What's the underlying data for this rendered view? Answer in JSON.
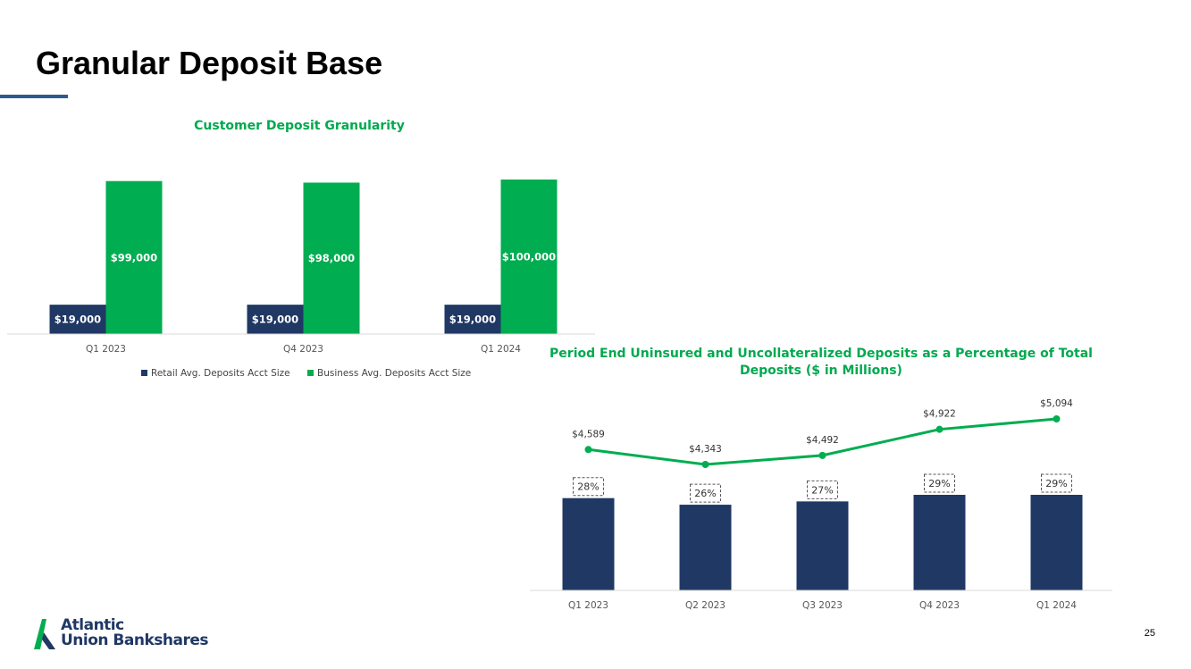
{
  "page": {
    "title": "Granular Deposit Base",
    "page_number": "25",
    "logo_line1": "Atlantic",
    "logo_line2": "Union Bankshares"
  },
  "colors": {
    "navy": "#203864",
    "green": "#00ad50",
    "title_green": "#00a94f",
    "accent_rule": "#2f5a8f"
  },
  "chart_data": [
    {
      "type": "bar",
      "title": "Customer Deposit Granularity",
      "categories": [
        "Q1 2023",
        "Q4 2023",
        "Q1 2024"
      ],
      "series": [
        {
          "name": "Retail Avg. Deposits Acct Size",
          "values": [
            19000,
            19000,
            19000
          ],
          "labels": [
            "$19,000",
            "$19,000",
            "$19,000"
          ],
          "color": "#203864"
        },
        {
          "name": "Business Avg. Deposits Acct Size",
          "values": [
            99000,
            98000,
            100000
          ],
          "labels": [
            "$99,000",
            "$98,000",
            "$100,000"
          ],
          "color": "#00ad50"
        }
      ],
      "ylim": [
        0,
        100000
      ],
      "grid": false,
      "legend": "bottom"
    },
    {
      "type": "bar",
      "title_line1": "Period End Uninsured and Uncollateralized Deposits as a Percentage of Total",
      "title_line2": "Deposits ($ in Millions)",
      "categories": [
        "Q1 2023",
        "Q2 2023",
        "Q3 2023",
        "Q4 2023",
        "Q1 2024"
      ],
      "series": [
        {
          "type": "bar",
          "values": [
            28,
            26,
            27,
            29,
            29
          ],
          "labels": [
            "28%",
            "26%",
            "27%",
            "29%",
            "29%"
          ],
          "color": "#203864"
        },
        {
          "type": "line",
          "values": [
            4589,
            4343,
            4492,
            4922,
            5094
          ],
          "labels": [
            "$4,589",
            "$4,343",
            "$4,492",
            "$4,922",
            "$5,094"
          ],
          "color": "#00ad50"
        }
      ],
      "grid": false,
      "legend": "none"
    }
  ]
}
